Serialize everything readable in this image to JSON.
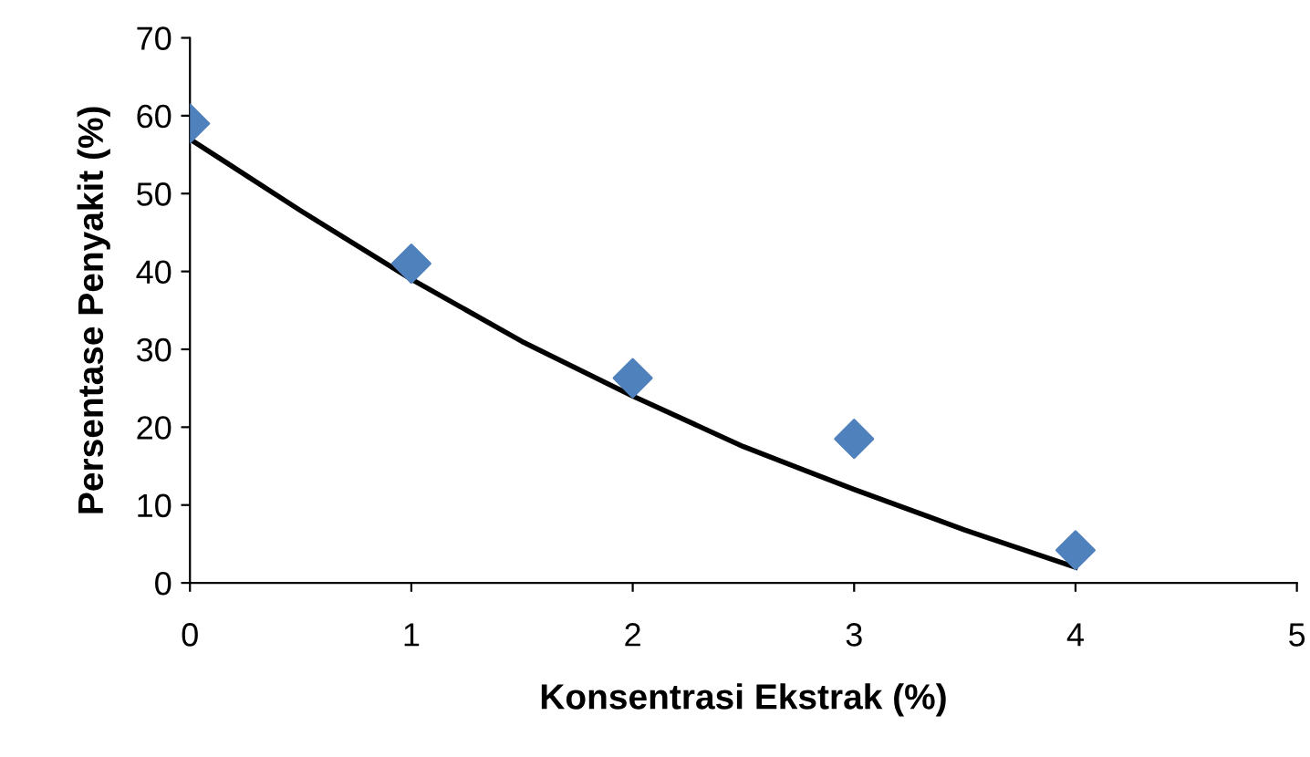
{
  "chart_data": {
    "type": "scatter",
    "xlabel": "Konsentrasi Ekstrak (%)",
    "ylabel": "Persentase Penyakit (%)",
    "xlim": [
      0,
      5
    ],
    "xticks": [
      0,
      1,
      2,
      3,
      4,
      5
    ],
    "ylim": [
      0,
      70
    ],
    "yticks": [
      0,
      10,
      20,
      30,
      40,
      50,
      60,
      70
    ],
    "grid": false,
    "legend": false,
    "series": [
      {
        "color": "#4f81bd",
        "marker": "diamond",
        "x": [
          0,
          1,
          2,
          3,
          4
        ],
        "values": [
          59,
          41,
          26.3,
          18.5,
          4.2
        ]
      },
      {
        "type": "line",
        "color": "#000000",
        "marker": "none",
        "line_style": "solid",
        "x": [
          0,
          0.5,
          1,
          1.5,
          2,
          2.5,
          3,
          3.5,
          4
        ],
        "values": [
          57,
          47.8,
          39,
          31,
          24,
          17.5,
          12,
          6.8,
          2
        ]
      }
    ]
  }
}
